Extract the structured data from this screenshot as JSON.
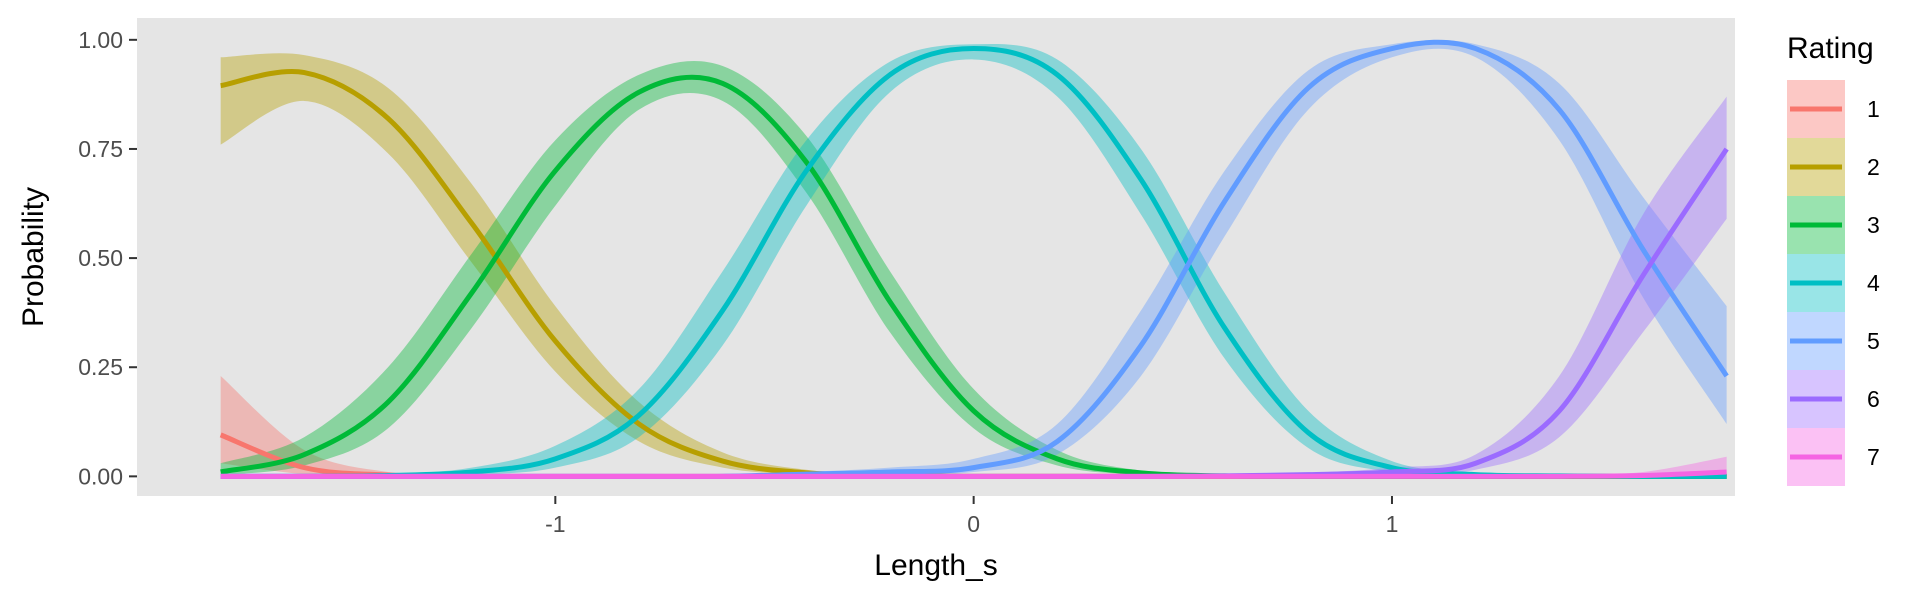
{
  "chart_data": {
    "type": "line",
    "title": "",
    "xlabel": "Length_s",
    "ylabel": "Probability",
    "xlim": [
      -2.0,
      1.82
    ],
    "ylim": [
      -0.045,
      1.05
    ],
    "x_ticks": [
      -1,
      0,
      1
    ],
    "x_tick_labels": [
      "-1",
      "0",
      "1"
    ],
    "y_ticks": [
      0.0,
      0.25,
      0.5,
      0.75,
      1.0
    ],
    "y_tick_labels": [
      "0.00",
      "0.25",
      "0.50",
      "0.75",
      "1.00"
    ],
    "grid": false,
    "panel_background": "#e5e5e5",
    "legend": {
      "title": "Rating",
      "position": "right"
    },
    "x": [
      -1.8,
      -1.6,
      -1.4,
      -1.2,
      -1.0,
      -0.8,
      -0.6,
      -0.4,
      -0.2,
      0.0,
      0.2,
      0.4,
      0.6,
      0.8,
      1.0,
      1.2,
      1.4,
      1.6,
      1.8
    ],
    "series": [
      {
        "name": "1",
        "color": "#F8766D",
        "values": [
          0.095,
          0.02,
          0.003,
          0.0,
          0.0,
          0.0,
          0.0,
          0.0,
          0.0,
          0.0,
          0.0,
          0.0,
          0.0,
          0.0,
          0.0,
          0.0,
          0.0,
          0.0,
          0.0
        ],
        "lower": [
          0.03,
          0.005,
          0.0,
          0.0,
          0.0,
          0.0,
          0.0,
          0.0,
          0.0,
          0.0,
          0.0,
          0.0,
          0.0,
          0.0,
          0.0,
          0.0,
          0.0,
          0.0,
          0.0
        ],
        "upper": [
          0.23,
          0.06,
          0.01,
          0.002,
          0.0,
          0.0,
          0.0,
          0.0,
          0.0,
          0.0,
          0.0,
          0.0,
          0.0,
          0.0,
          0.0,
          0.0,
          0.0,
          0.0,
          0.0
        ]
      },
      {
        "name": "2",
        "color": "#B79F00",
        "values": [
          0.895,
          0.925,
          0.82,
          0.58,
          0.31,
          0.12,
          0.035,
          0.008,
          0.002,
          0.0,
          0.0,
          0.0,
          0.0,
          0.0,
          0.0,
          0.0,
          0.0,
          0.0,
          0.0
        ],
        "lower": [
          0.76,
          0.86,
          0.74,
          0.49,
          0.24,
          0.08,
          0.02,
          0.004,
          0.001,
          0.0,
          0.0,
          0.0,
          0.0,
          0.0,
          0.0,
          0.0,
          0.0,
          0.0,
          0.0
        ],
        "upper": [
          0.96,
          0.965,
          0.89,
          0.67,
          0.39,
          0.17,
          0.055,
          0.015,
          0.004,
          0.0,
          0.0,
          0.0,
          0.0,
          0.0,
          0.0,
          0.0,
          0.0,
          0.0,
          0.0
        ]
      },
      {
        "name": "3",
        "color": "#00BA38",
        "values": [
          0.01,
          0.05,
          0.17,
          0.42,
          0.7,
          0.88,
          0.9,
          0.72,
          0.4,
          0.15,
          0.04,
          0.008,
          0.001,
          0.0,
          0.0,
          0.0,
          0.0,
          0.0,
          0.0
        ],
        "lower": [
          0.003,
          0.025,
          0.11,
          0.34,
          0.62,
          0.84,
          0.86,
          0.65,
          0.33,
          0.11,
          0.025,
          0.004,
          0.0,
          0.0,
          0.0,
          0.0,
          0.0,
          0.0,
          0.0
        ],
        "upper": [
          0.03,
          0.09,
          0.25,
          0.51,
          0.77,
          0.92,
          0.94,
          0.78,
          0.47,
          0.2,
          0.06,
          0.013,
          0.003,
          0.0,
          0.0,
          0.0,
          0.0,
          0.0,
          0.0
        ]
      },
      {
        "name": "4",
        "color": "#00BFC4",
        "values": [
          0.0,
          0.0,
          0.002,
          0.01,
          0.04,
          0.14,
          0.38,
          0.7,
          0.92,
          0.98,
          0.92,
          0.68,
          0.34,
          0.1,
          0.02,
          0.004,
          0.001,
          0.0,
          0.0
        ],
        "lower": [
          0.0,
          0.0,
          0.0,
          0.004,
          0.02,
          0.09,
          0.3,
          0.62,
          0.88,
          0.955,
          0.87,
          0.6,
          0.27,
          0.065,
          0.01,
          0.002,
          0.0,
          0.0,
          0.0
        ],
        "upper": [
          0.0,
          0.001,
          0.005,
          0.02,
          0.07,
          0.2,
          0.47,
          0.77,
          0.95,
          0.99,
          0.955,
          0.75,
          0.42,
          0.15,
          0.035,
          0.008,
          0.002,
          0.0,
          0.0
        ]
      },
      {
        "name": "5",
        "color": "#619CFF",
        "values": [
          0.0,
          0.0,
          0.0,
          0.0,
          0.0,
          0.0,
          0.0,
          0.005,
          0.01,
          0.02,
          0.08,
          0.3,
          0.63,
          0.89,
          0.98,
          0.98,
          0.84,
          0.52,
          0.23
        ],
        "lower": [
          0.0,
          0.0,
          0.0,
          0.0,
          0.0,
          0.0,
          0.0,
          0.002,
          0.005,
          0.01,
          0.05,
          0.23,
          0.55,
          0.84,
          0.96,
          0.96,
          0.77,
          0.41,
          0.12
        ],
        "upper": [
          0.0,
          0.0,
          0.0,
          0.0,
          0.0,
          0.0,
          0.0,
          0.01,
          0.02,
          0.04,
          0.12,
          0.38,
          0.7,
          0.93,
          0.99,
          0.99,
          0.9,
          0.64,
          0.39
        ]
      },
      {
        "name": "6",
        "color": "#9B6BFF",
        "values": [
          0.0,
          0.0,
          0.0,
          0.0,
          0.0,
          0.0,
          0.0,
          0.0,
          0.0,
          0.0,
          0.0,
          0.0,
          0.001,
          0.004,
          0.01,
          0.03,
          0.15,
          0.46,
          0.75
        ],
        "lower": [
          0.0,
          0.0,
          0.0,
          0.0,
          0.0,
          0.0,
          0.0,
          0.0,
          0.0,
          0.0,
          0.0,
          0.0,
          0.0,
          0.001,
          0.005,
          0.015,
          0.09,
          0.33,
          0.59
        ],
        "upper": [
          0.0,
          0.0,
          0.0,
          0.0,
          0.0,
          0.0,
          0.0,
          0.0,
          0.0,
          0.0,
          0.0,
          0.0,
          0.002,
          0.008,
          0.02,
          0.05,
          0.23,
          0.6,
          0.87
        ]
      },
      {
        "name": "7",
        "color": "#F564E3",
        "values": [
          0.0,
          0.0,
          0.0,
          0.0,
          0.0,
          0.0,
          0.0,
          0.0,
          0.0,
          0.0,
          0.0,
          0.0,
          0.0,
          0.0,
          0.0,
          0.0,
          0.0,
          0.002,
          0.01
        ],
        "lower": [
          0.0,
          0.0,
          0.0,
          0.0,
          0.0,
          0.0,
          0.0,
          0.0,
          0.0,
          0.0,
          0.0,
          0.0,
          0.0,
          0.0,
          0.0,
          0.0,
          0.0,
          0.0,
          0.002
        ],
        "upper": [
          0.0,
          0.0,
          0.0,
          0.0,
          0.0,
          0.0,
          0.0,
          0.0,
          0.0,
          0.0,
          0.0,
          0.0,
          0.0,
          0.0,
          0.0,
          0.0,
          0.002,
          0.01,
          0.045
        ]
      }
    ]
  }
}
